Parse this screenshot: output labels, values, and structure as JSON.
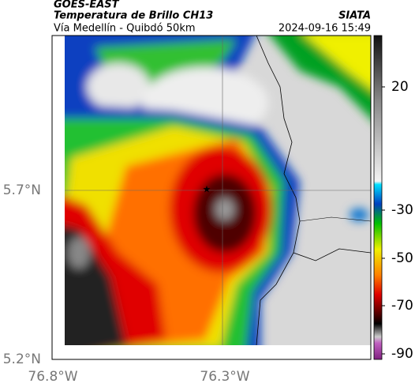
{
  "header": {
    "source": "GOES-EAST",
    "title": "Temperatura de Brillo CH13",
    "subtitle": "Vía Medellín - Quibdó 50km",
    "agency": "SIATA",
    "datetime": "2024-09-16 15:49"
  },
  "axes": {
    "lat_ticks": [
      "5.7°N",
      "5.2°N"
    ],
    "lon_ticks": [
      "76.8°W",
      "76.3°W"
    ]
  },
  "colorbar": {
    "ticks": [
      "20",
      "-30",
      "-50",
      "-70",
      "-90"
    ]
  }
}
